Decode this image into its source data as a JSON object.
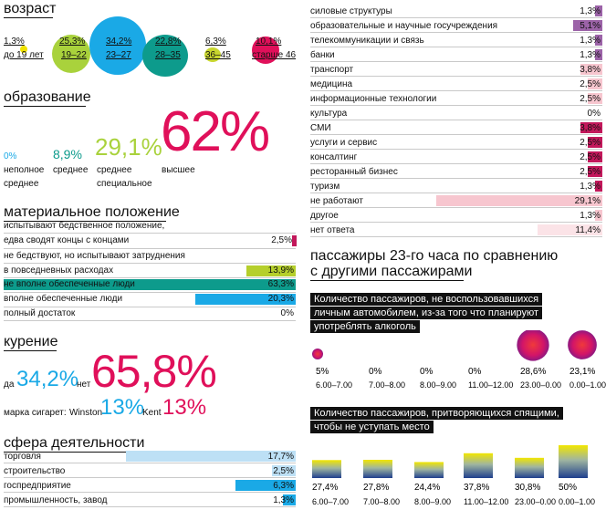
{
  "age": {
    "title": "возраст",
    "groups": [
      {
        "value": "1,3%",
        "label": "до 19 лет",
        "color": "#f0e200"
      },
      {
        "value": "25,3%",
        "label": "19–22",
        "color": "#a9d23c"
      },
      {
        "value": "34,2%",
        "label": "23–27",
        "color": "#1aa9e6"
      },
      {
        "value": "22,8%",
        "label": "28–35",
        "color": "#0d9b8c"
      },
      {
        "value": "6,3%",
        "label": "36–45",
        "color": "#c8d62e"
      },
      {
        "value": "10,1%",
        "label": "старше 46",
        "color": "#e0105a"
      }
    ]
  },
  "education": {
    "title": "образование",
    "items": [
      {
        "value": "0%",
        "label1": "неполное",
        "label2": "среднее",
        "color": "#1aa9e6"
      },
      {
        "value": "8,9%",
        "label1": "среднее",
        "label2": "",
        "color": "#0d9b8c"
      },
      {
        "value": "29,1%",
        "label1": "среднее",
        "label2": "специальное",
        "color": "#a9d23c"
      },
      {
        "value": "62%",
        "label1": "высшее",
        "label2": "",
        "color": "#e0105a"
      }
    ]
  },
  "material": {
    "title": "материальное положение",
    "rows": [
      {
        "label1": "испытывают бедственное положение,",
        "label2": "едва сводят концы с концами",
        "value": "2,5%",
        "pct": 2.5,
        "color": "#c2185b"
      },
      {
        "label1": "не бедствуют, но испытывают затруднения",
        "label2": "в повседневных расходах",
        "value": "13,9%",
        "pct": 13.9,
        "color": "#b5cf2c"
      },
      {
        "label1": "не вполне обеспеченные люди",
        "label2": "",
        "value": "63,3%",
        "pct": 63.3,
        "color": "#0d9b8c"
      },
      {
        "label1": "вполне обеспеченные люди",
        "label2": "",
        "value": "20,3%",
        "pct": 20.3,
        "color": "#1aa9e6"
      },
      {
        "label1": "полный достаток",
        "label2": "",
        "value": "0%",
        "pct": 0,
        "color": "#1aa9e6"
      }
    ]
  },
  "smoking": {
    "title": "курение",
    "yes_label": "да",
    "yes_value": "34,2%",
    "no_label": "нет",
    "no_value": "65,8%",
    "brand_label": "марка сигарет:",
    "brand1": "Winston",
    "brand1_value": "13%",
    "brand2": "Kent",
    "brand2_value": "13%"
  },
  "sphere": {
    "title": "сфера деятельности",
    "rows_left": [
      {
        "label": "торговля",
        "value": "17,7%",
        "pct": 17.7,
        "color": "#bde0f5"
      },
      {
        "label": "строительство",
        "value": "2,5%",
        "pct": 2.5,
        "color": "#bde0f5"
      },
      {
        "label": "госпредприятие",
        "value": "6,3%",
        "pct": 6.3,
        "color": "#1aa9e6"
      },
      {
        "label": "промышленность, завод",
        "value": "1,3%",
        "pct": 1.3,
        "color": "#1aa9e6"
      }
    ],
    "rows_right": [
      {
        "label": "силовые структуры",
        "value": "1,3%",
        "pct": 1.3,
        "color": "#9c63a8"
      },
      {
        "label": "образовательные и научные госучреждения",
        "value": "5,1%",
        "pct": 5.1,
        "color": "#9c63a8"
      },
      {
        "label": "телекоммуникации и связь",
        "value": "1,3%",
        "pct": 1.3,
        "color": "#9c63a8"
      },
      {
        "label": "банки",
        "value": "1,3%",
        "pct": 1.3,
        "color": "#9c63a8"
      },
      {
        "label": "транспорт",
        "value": "3,8%",
        "pct": 3.8,
        "color": "#f7c6cf"
      },
      {
        "label": "медицина",
        "value": "2,5%",
        "pct": 2.5,
        "color": "#f7c6cf"
      },
      {
        "label": "информационные технологии",
        "value": "2,5%",
        "pct": 2.5,
        "color": "#f7c6cf"
      },
      {
        "label": "культура",
        "value": "0%",
        "pct": 0,
        "color": "#f7c6cf"
      },
      {
        "label": "СМИ",
        "value": "3,8%",
        "pct": 3.8,
        "color": "#c2185b"
      },
      {
        "label": "услуги и сервис",
        "value": "2,5%",
        "pct": 2.5,
        "color": "#c2185b"
      },
      {
        "label": "консалтинг",
        "value": "2,5%",
        "pct": 2.5,
        "color": "#c2185b"
      },
      {
        "label": "ресторанный бизнес",
        "value": "2,5%",
        "pct": 2.5,
        "color": "#c2185b"
      },
      {
        "label": "туризм",
        "value": "1,3%",
        "pct": 1.3,
        "color": "#c2185b"
      },
      {
        "label": "не работают",
        "value": "29,1%",
        "pct": 29.1,
        "color": "#f7c6cf"
      },
      {
        "label": "другое",
        "value": "1,3%",
        "pct": 1.3,
        "color": "#f7c6cf"
      },
      {
        "label": "нет ответа",
        "value": "11,4%",
        "pct": 11.4,
        "color": "#fbe3e7"
      }
    ]
  },
  "passengers": {
    "title_line1": "пассажиры 23-го часа по сравнению",
    "title_line2": "с другими пассажирами",
    "alcohol_title_line1": "Количество пассажиров, не воспользовавшихся",
    "alcohol_title_line2": "личным автомобилем, из-за того что планируют",
    "alcohol_title_line3": "употреблять алкоголь",
    "sleep_title_line1": "Количество пассажиров, притворяющихся спящими,",
    "sleep_title_line2": "чтобы не уступать место"
  },
  "chart_data": [
    {
      "type": "scatter",
      "title": "Количество пассажиров, не воспользовавшихся личным автомобилем, из-за того что планируют употреблять алкоголь",
      "categories": [
        "6.00–7.00",
        "7.00–8.00",
        "8.00–9.00",
        "11.00–12.00",
        "23.00–0.00",
        "0.00–1.00"
      ],
      "values": [
        5,
        0,
        0,
        0,
        28.6,
        23.1
      ],
      "labels": [
        "5%",
        "0%",
        "0%",
        "0%",
        "28,6%",
        "23,1%"
      ]
    },
    {
      "type": "bar",
      "title": "Количество пассажиров, притворяющихся спящими, чтобы не уступать место",
      "categories": [
        "6.00–7.00",
        "7.00–8.00",
        "8.00–9.00",
        "11.00–12.00",
        "23.00–0.00",
        "0.00–1.00"
      ],
      "values": [
        27.4,
        27.8,
        24.4,
        37.8,
        30.8,
        50
      ],
      "labels": [
        "27,4%",
        "27,8%",
        "24,4%",
        "37,8%",
        "30,8%",
        "50%"
      ]
    }
  ]
}
